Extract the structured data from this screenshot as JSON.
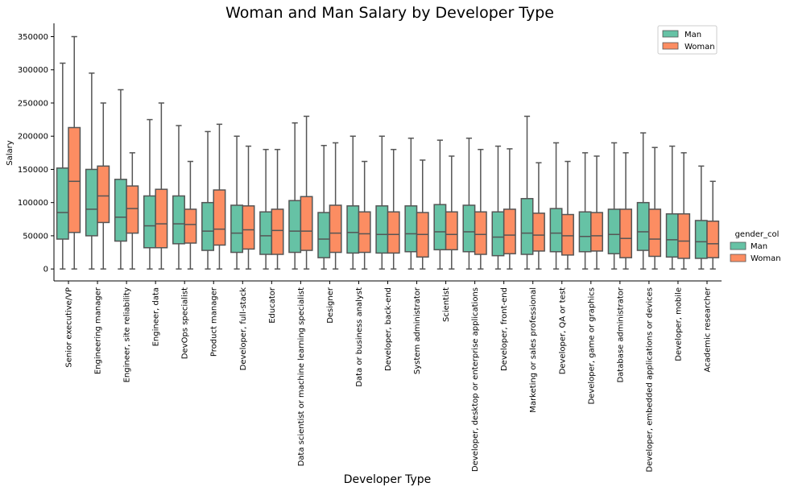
{
  "chart_data": {
    "type": "boxplot",
    "title": "Woman and Man Salary by Developer Type",
    "xlabel": "Developer Type",
    "ylabel": "Salary",
    "ylim": [
      -18000,
      370000
    ],
    "yticks": [
      0,
      50000,
      100000,
      150000,
      200000,
      250000,
      300000,
      350000
    ],
    "ytick_labels": [
      "0",
      "50000",
      "100000",
      "150000",
      "200000",
      "250000",
      "300000",
      "350000"
    ],
    "categories": [
      "Senior executive/VP",
      "Engineering manager",
      "Engineer, site reliability",
      "Engineer, data",
      "DevOps specialist",
      "Product manager",
      "Developer, full-stack",
      "Educator",
      "Data scientist or machine learning specialist",
      "Designer",
      "Data or business analyst",
      "Developer, back-end",
      "System administrator",
      "Scientist",
      "Developer, desktop or enterprise applications",
      "Developer, front-end",
      "Marketing or sales professional",
      "Developer, QA or test",
      "Developer, game or graphics",
      "Database administrator",
      "Developer, embedded applications or devices",
      "Developer, mobile",
      "Academic researcher"
    ],
    "series": [
      {
        "name": "Man",
        "color": "#66c2a5",
        "boxes": [
          [
            0,
            45000,
            85000,
            152000,
            310000
          ],
          [
            0,
            50000,
            90000,
            150000,
            295000
          ],
          [
            0,
            42000,
            78000,
            135000,
            270000
          ],
          [
            0,
            32000,
            65000,
            110000,
            225000
          ],
          [
            0,
            38000,
            68000,
            110000,
            216000
          ],
          [
            0,
            28000,
            57000,
            100000,
            207000
          ],
          [
            0,
            25000,
            54000,
            96000,
            200000
          ],
          [
            0,
            22000,
            50000,
            86000,
            180000
          ],
          [
            0,
            25000,
            57000,
            103000,
            220000
          ],
          [
            0,
            17000,
            45000,
            85000,
            186000
          ],
          [
            0,
            24000,
            55000,
            95000,
            200000
          ],
          [
            0,
            24000,
            52000,
            95000,
            200000
          ],
          [
            0,
            26000,
            53000,
            95000,
            197000
          ],
          [
            0,
            29000,
            56000,
            97000,
            194000
          ],
          [
            0,
            26000,
            56000,
            96000,
            197000
          ],
          [
            0,
            20000,
            48000,
            86000,
            185000
          ],
          [
            0,
            22000,
            54000,
            106000,
            230000
          ],
          [
            0,
            26000,
            54000,
            91000,
            190000
          ],
          [
            0,
            26000,
            49000,
            86000,
            175000
          ],
          [
            0,
            23000,
            52000,
            90000,
            190000
          ],
          [
            0,
            28000,
            56000,
            100000,
            205000
          ],
          [
            0,
            18000,
            44000,
            83000,
            185000
          ],
          [
            0,
            16000,
            41000,
            73000,
            155000
          ]
        ]
      },
      {
        "name": "Woman",
        "color": "#fc8d62",
        "boxes": [
          [
            0,
            55000,
            132000,
            213000,
            350000
          ],
          [
            0,
            70000,
            110000,
            155000,
            250000
          ],
          [
            0,
            54000,
            91000,
            125000,
            175000
          ],
          [
            0,
            32000,
            68000,
            120000,
            250000
          ],
          [
            0,
            39000,
            67000,
            90000,
            162000
          ],
          [
            0,
            36000,
            60000,
            119000,
            218000
          ],
          [
            0,
            30000,
            59000,
            95000,
            185000
          ],
          [
            0,
            22000,
            58000,
            90000,
            180000
          ],
          [
            0,
            28000,
            57000,
            109000,
            230000
          ],
          [
            0,
            25000,
            54000,
            96000,
            190000
          ],
          [
            0,
            25000,
            53000,
            86000,
            162000
          ],
          [
            0,
            24000,
            52000,
            86000,
            180000
          ],
          [
            0,
            18000,
            52000,
            85000,
            164000
          ],
          [
            0,
            29000,
            52000,
            86000,
            170000
          ],
          [
            0,
            22000,
            52000,
            86000,
            180000
          ],
          [
            0,
            23000,
            51000,
            90000,
            181000
          ],
          [
            0,
            27000,
            51000,
            84000,
            160000
          ],
          [
            0,
            21000,
            50000,
            82000,
            162000
          ],
          [
            0,
            27000,
            50000,
            85000,
            170000
          ],
          [
            0,
            17000,
            46000,
            90000,
            175000
          ],
          [
            0,
            19000,
            45000,
            90000,
            183000
          ],
          [
            0,
            16000,
            42000,
            83000,
            175000
          ],
          [
            0,
            17000,
            38000,
            72000,
            132000
          ]
        ]
      }
    ],
    "inner_legend": {
      "position": "top-right",
      "entries": [
        "Man",
        "Woman"
      ]
    },
    "outer_legend": {
      "title": "gender_col",
      "position": "right",
      "entries": [
        "Man",
        "Woman"
      ]
    },
    "whisker_color": "#555555"
  }
}
